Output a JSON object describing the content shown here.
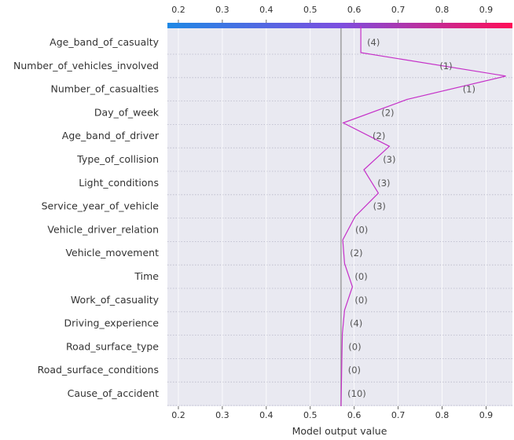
{
  "chart_data": {
    "type": "line",
    "chart_kind": "shap-decision-plot",
    "xlabel": "Model output value",
    "xlim": [
      0.175,
      0.96
    ],
    "xticks": [
      0.2,
      0.3,
      0.4,
      0.5,
      0.6,
      0.7,
      0.8,
      0.9
    ],
    "xtick_labels": [
      "0.2",
      "0.3",
      "0.4",
      "0.5",
      "0.6",
      "0.7",
      "0.8",
      "0.9"
    ],
    "base_value": 0.57,
    "final_value": 0.615,
    "features": [
      "Age_band_of_casualty",
      "Number_of_vehicles_involved",
      "Number_of_casualties",
      "Day_of_week",
      "Age_band_of_driver",
      "Type_of_collision",
      "Light_conditions",
      "Service_year_of_vehicle",
      "Vehicle_driver_relation",
      "Vehicle_movement",
      "Time",
      "Work_of_casuality",
      "Driving_experience",
      "Road_surface_type",
      "Road_surface_conditions",
      "Cause_of_accident"
    ],
    "feature_values": [
      "(4)",
      "(1)",
      "(1)",
      "(2)",
      "(2)",
      "(3)",
      "(3)",
      "(3)",
      "(0)",
      "(2)",
      "(0)",
      "(0)",
      "(4)",
      "(0)",
      "(0)",
      "(10)"
    ],
    "path_values": [
      0.57,
      0.571,
      0.572,
      0.573,
      0.578,
      0.596,
      0.578,
      0.574,
      0.602,
      0.655,
      0.622,
      0.68,
      0.575,
      0.72,
      0.945,
      0.615
    ],
    "colormap": [
      "#1e88e5",
      "#7c4ee0",
      "#ff0d57"
    ],
    "line_color": "#c530c8",
    "grid": true,
    "background": "#e9e9f1"
  }
}
